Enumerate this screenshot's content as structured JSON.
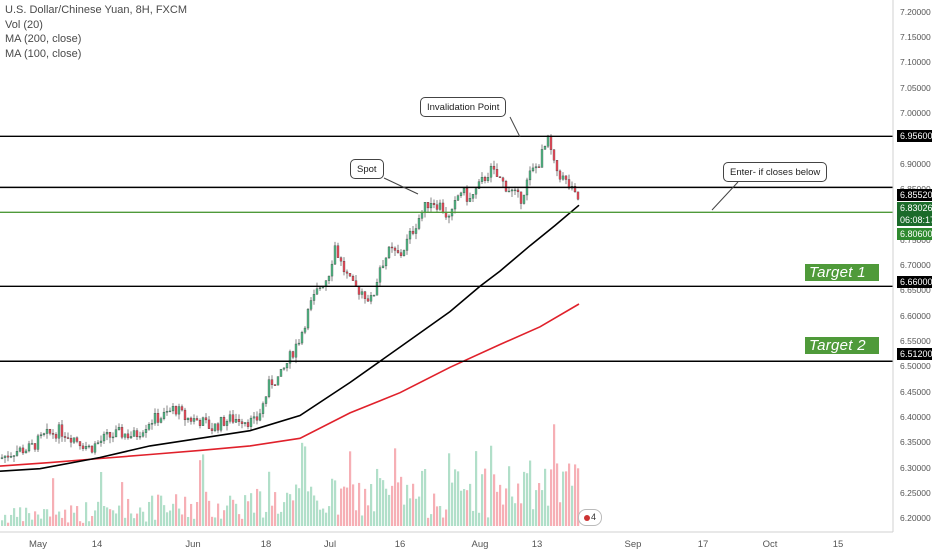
{
  "legend": {
    "title": "U.S. Dollar/Chinese Yuan, 8H, FXCM",
    "vol": "Vol (20)",
    "ma200": "MA (200, close)",
    "ma100": "MA (100, close)"
  },
  "colors": {
    "up": "#53b987",
    "down": "#eb4d5c",
    "ma100": "#000000",
    "ma200": "#e0212b",
    "level_black": "#000000",
    "level_green": "#4f9a3a",
    "target_bg": "#4f9a3a"
  },
  "annotations": {
    "invalidation": "Invalidation Point",
    "spot": "Spot",
    "enter": "Enter- if closes below",
    "target1": "Target 1",
    "target2": "Target 2"
  },
  "price_labels": {
    "invalidation": "6.95600",
    "spot_top": "6.85520",
    "last": "6.83026",
    "countdown": "06:08:17",
    "enter": "6.80600",
    "target1": "6.66000",
    "target2": "6.51200"
  },
  "badge": "4",
  "chart_data": {
    "type": "candlestick",
    "title": "U.S. Dollar/Chinese Yuan, 8H, FXCM",
    "y_axis_ticks": [
      "7.20000",
      "7.15000",
      "7.10000",
      "7.05000",
      "7.00000",
      "6.95000",
      "6.90000",
      "6.85000",
      "6.80000",
      "6.75000",
      "6.70000",
      "6.65000",
      "6.60000",
      "6.55000",
      "6.50000",
      "6.45000",
      "6.40000",
      "6.35000",
      "6.30000",
      "6.25000",
      "6.20000"
    ],
    "ylim": [
      6.175,
      7.225
    ],
    "x_axis_ticks": [
      "May",
      "14",
      "Jun",
      "18",
      "Jul",
      "16",
      "Aug",
      "13",
      "Sep",
      "17",
      "Oct",
      "15"
    ],
    "horizontal_levels": [
      {
        "name": "invalidation",
        "value": 6.956,
        "color": "black"
      },
      {
        "name": "spot",
        "value": 6.8552,
        "color": "black"
      },
      {
        "name": "enter",
        "value": 6.806,
        "color": "green"
      },
      {
        "name": "target1",
        "value": 6.66,
        "color": "black"
      },
      {
        "name": "target2",
        "value": 6.512,
        "color": "black"
      }
    ],
    "price_path": [
      [
        0,
        6.32
      ],
      [
        15,
        6.335
      ],
      [
        30,
        6.34
      ],
      [
        45,
        6.365
      ],
      [
        60,
        6.375
      ],
      [
        75,
        6.36
      ],
      [
        90,
        6.34
      ],
      [
        105,
        6.36
      ],
      [
        120,
        6.37
      ],
      [
        135,
        6.365
      ],
      [
        150,
        6.395
      ],
      [
        165,
        6.405
      ],
      [
        175,
        6.42
      ],
      [
        185,
        6.4
      ],
      [
        200,
        6.395
      ],
      [
        212,
        6.38
      ],
      [
        225,
        6.395
      ],
      [
        240,
        6.4
      ],
      [
        255,
        6.39
      ],
      [
        262,
        6.42
      ],
      [
        270,
        6.47
      ],
      [
        280,
        6.48
      ],
      [
        290,
        6.52
      ],
      [
        300,
        6.56
      ],
      [
        310,
        6.62
      ],
      [
        320,
        6.66
      ],
      [
        328,
        6.68
      ],
      [
        335,
        6.74
      ],
      [
        342,
        6.7
      ],
      [
        352,
        6.66
      ],
      [
        362,
        6.65
      ],
      [
        372,
        6.63
      ],
      [
        380,
        6.7
      ],
      [
        390,
        6.73
      ],
      [
        400,
        6.72
      ],
      [
        410,
        6.76
      ],
      [
        420,
        6.8
      ],
      [
        430,
        6.83
      ],
      [
        440,
        6.82
      ],
      [
        450,
        6.79
      ],
      [
        460,
        6.85
      ],
      [
        470,
        6.83
      ],
      [
        480,
        6.86
      ],
      [
        490,
        6.89
      ],
      [
        500,
        6.87
      ],
      [
        510,
        6.85
      ],
      [
        520,
        6.83
      ],
      [
        530,
        6.88
      ],
      [
        538,
        6.9
      ],
      [
        544,
        6.93
      ],
      [
        549,
        6.95
      ],
      [
        553,
        6.9
      ],
      [
        560,
        6.88
      ],
      [
        568,
        6.86
      ],
      [
        574,
        6.84
      ],
      [
        579,
        6.83
      ]
    ],
    "ma100_path": [
      [
        0,
        6.295
      ],
      [
        40,
        6.3
      ],
      [
        100,
        6.322
      ],
      [
        150,
        6.345
      ],
      [
        200,
        6.36
      ],
      [
        250,
        6.375
      ],
      [
        300,
        6.405
      ],
      [
        350,
        6.47
      ],
      [
        400,
        6.54
      ],
      [
        450,
        6.61
      ],
      [
        480,
        6.66
      ],
      [
        500,
        6.69
      ],
      [
        530,
        6.74
      ],
      [
        555,
        6.78
      ],
      [
        579,
        6.82
      ]
    ],
    "ma200_path": [
      [
        0,
        6.305
      ],
      [
        50,
        6.312
      ],
      [
        100,
        6.32
      ],
      [
        150,
        6.328
      ],
      [
        200,
        6.336
      ],
      [
        250,
        6.345
      ],
      [
        300,
        6.36
      ],
      [
        350,
        6.41
      ],
      [
        400,
        6.45
      ],
      [
        450,
        6.5
      ],
      [
        500,
        6.545
      ],
      [
        540,
        6.58
      ],
      [
        579,
        6.625
      ]
    ]
  }
}
